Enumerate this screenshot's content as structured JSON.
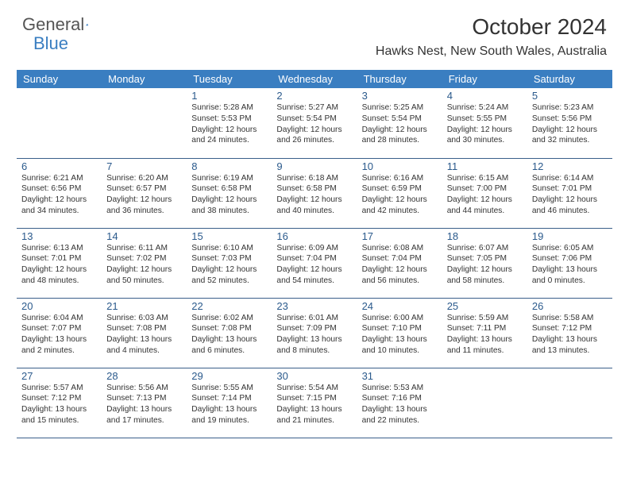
{
  "brand": {
    "name1": "General",
    "name2": "Blue",
    "color1": "#555555",
    "color2": "#3a7ec1"
  },
  "title": "October 2024",
  "location": "Hawks Nest, New South Wales, Australia",
  "dayHeaders": [
    "Sunday",
    "Monday",
    "Tuesday",
    "Wednesday",
    "Thursday",
    "Friday",
    "Saturday"
  ],
  "header_bg": "#3a7ec1",
  "header_fg": "#ffffff",
  "border_color": "#3a5f8a",
  "daynum_color": "#2b5a8c",
  "text_color": "#333333",
  "weeks": [
    [
      null,
      null,
      {
        "num": "1",
        "sunrise": "5:28 AM",
        "sunset": "5:53 PM",
        "daylight": "12 hours and 24 minutes."
      },
      {
        "num": "2",
        "sunrise": "5:27 AM",
        "sunset": "5:54 PM",
        "daylight": "12 hours and 26 minutes."
      },
      {
        "num": "3",
        "sunrise": "5:25 AM",
        "sunset": "5:54 PM",
        "daylight": "12 hours and 28 minutes."
      },
      {
        "num": "4",
        "sunrise": "5:24 AM",
        "sunset": "5:55 PM",
        "daylight": "12 hours and 30 minutes."
      },
      {
        "num": "5",
        "sunrise": "5:23 AM",
        "sunset": "5:56 PM",
        "daylight": "12 hours and 32 minutes."
      }
    ],
    [
      {
        "num": "6",
        "sunrise": "6:21 AM",
        "sunset": "6:56 PM",
        "daylight": "12 hours and 34 minutes."
      },
      {
        "num": "7",
        "sunrise": "6:20 AM",
        "sunset": "6:57 PM",
        "daylight": "12 hours and 36 minutes."
      },
      {
        "num": "8",
        "sunrise": "6:19 AM",
        "sunset": "6:58 PM",
        "daylight": "12 hours and 38 minutes."
      },
      {
        "num": "9",
        "sunrise": "6:18 AM",
        "sunset": "6:58 PM",
        "daylight": "12 hours and 40 minutes."
      },
      {
        "num": "10",
        "sunrise": "6:16 AM",
        "sunset": "6:59 PM",
        "daylight": "12 hours and 42 minutes."
      },
      {
        "num": "11",
        "sunrise": "6:15 AM",
        "sunset": "7:00 PM",
        "daylight": "12 hours and 44 minutes."
      },
      {
        "num": "12",
        "sunrise": "6:14 AM",
        "sunset": "7:01 PM",
        "daylight": "12 hours and 46 minutes."
      }
    ],
    [
      {
        "num": "13",
        "sunrise": "6:13 AM",
        "sunset": "7:01 PM",
        "daylight": "12 hours and 48 minutes."
      },
      {
        "num": "14",
        "sunrise": "6:11 AM",
        "sunset": "7:02 PM",
        "daylight": "12 hours and 50 minutes."
      },
      {
        "num": "15",
        "sunrise": "6:10 AM",
        "sunset": "7:03 PM",
        "daylight": "12 hours and 52 minutes."
      },
      {
        "num": "16",
        "sunrise": "6:09 AM",
        "sunset": "7:04 PM",
        "daylight": "12 hours and 54 minutes."
      },
      {
        "num": "17",
        "sunrise": "6:08 AM",
        "sunset": "7:04 PM",
        "daylight": "12 hours and 56 minutes."
      },
      {
        "num": "18",
        "sunrise": "6:07 AM",
        "sunset": "7:05 PM",
        "daylight": "12 hours and 58 minutes."
      },
      {
        "num": "19",
        "sunrise": "6:05 AM",
        "sunset": "7:06 PM",
        "daylight": "13 hours and 0 minutes."
      }
    ],
    [
      {
        "num": "20",
        "sunrise": "6:04 AM",
        "sunset": "7:07 PM",
        "daylight": "13 hours and 2 minutes."
      },
      {
        "num": "21",
        "sunrise": "6:03 AM",
        "sunset": "7:08 PM",
        "daylight": "13 hours and 4 minutes."
      },
      {
        "num": "22",
        "sunrise": "6:02 AM",
        "sunset": "7:08 PM",
        "daylight": "13 hours and 6 minutes."
      },
      {
        "num": "23",
        "sunrise": "6:01 AM",
        "sunset": "7:09 PM",
        "daylight": "13 hours and 8 minutes."
      },
      {
        "num": "24",
        "sunrise": "6:00 AM",
        "sunset": "7:10 PM",
        "daylight": "13 hours and 10 minutes."
      },
      {
        "num": "25",
        "sunrise": "5:59 AM",
        "sunset": "7:11 PM",
        "daylight": "13 hours and 11 minutes."
      },
      {
        "num": "26",
        "sunrise": "5:58 AM",
        "sunset": "7:12 PM",
        "daylight": "13 hours and 13 minutes."
      }
    ],
    [
      {
        "num": "27",
        "sunrise": "5:57 AM",
        "sunset": "7:12 PM",
        "daylight": "13 hours and 15 minutes."
      },
      {
        "num": "28",
        "sunrise": "5:56 AM",
        "sunset": "7:13 PM",
        "daylight": "13 hours and 17 minutes."
      },
      {
        "num": "29",
        "sunrise": "5:55 AM",
        "sunset": "7:14 PM",
        "daylight": "13 hours and 19 minutes."
      },
      {
        "num": "30",
        "sunrise": "5:54 AM",
        "sunset": "7:15 PM",
        "daylight": "13 hours and 21 minutes."
      },
      {
        "num": "31",
        "sunrise": "5:53 AM",
        "sunset": "7:16 PM",
        "daylight": "13 hours and 22 minutes."
      },
      null,
      null
    ]
  ]
}
